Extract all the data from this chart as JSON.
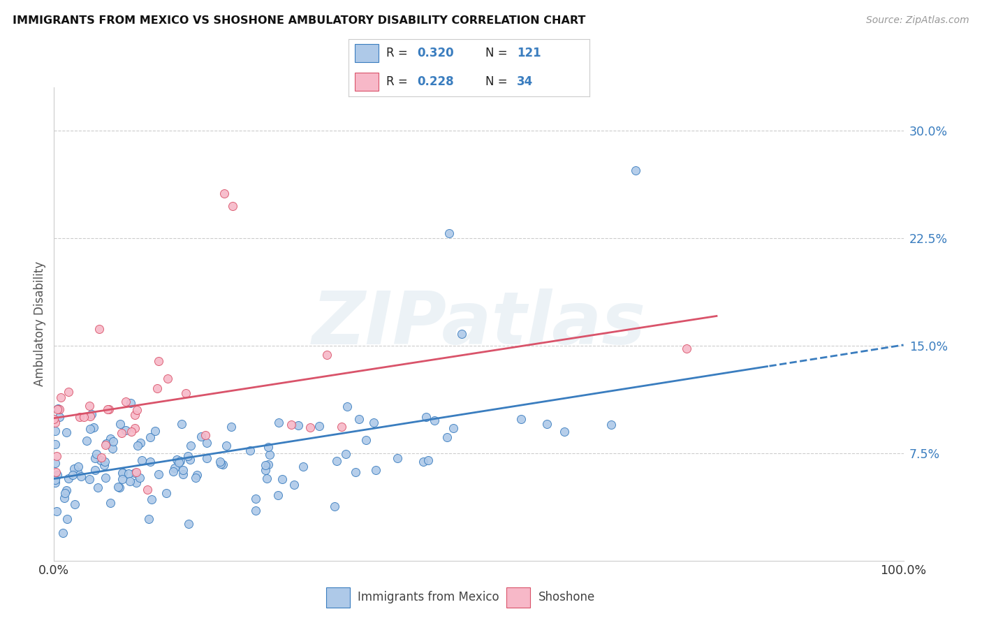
{
  "title": "IMMIGRANTS FROM MEXICO VS SHOSHONE AMBULATORY DISABILITY CORRELATION CHART",
  "source": "Source: ZipAtlas.com",
  "ylabel": "Ambulatory Disability",
  "yticks": [
    "7.5%",
    "15.0%",
    "22.5%",
    "30.0%"
  ],
  "ytick_vals": [
    0.075,
    0.15,
    0.225,
    0.3
  ],
  "xlim": [
    0.0,
    1.0
  ],
  "ylim": [
    0.0,
    0.33
  ],
  "legend_R1": "0.320",
  "legend_N1": "121",
  "legend_R2": "0.228",
  "legend_N2": "34",
  "color_blue": "#aec9e8",
  "color_pink": "#f7b8c8",
  "line_blue": "#3a7dbf",
  "line_pink": "#d9536a",
  "text_blue": "#3a7dbf",
  "watermark": "ZIPatlas",
  "legend_label1": "Immigrants from Mexico",
  "legend_label2": "Shoshone",
  "seed": 42
}
